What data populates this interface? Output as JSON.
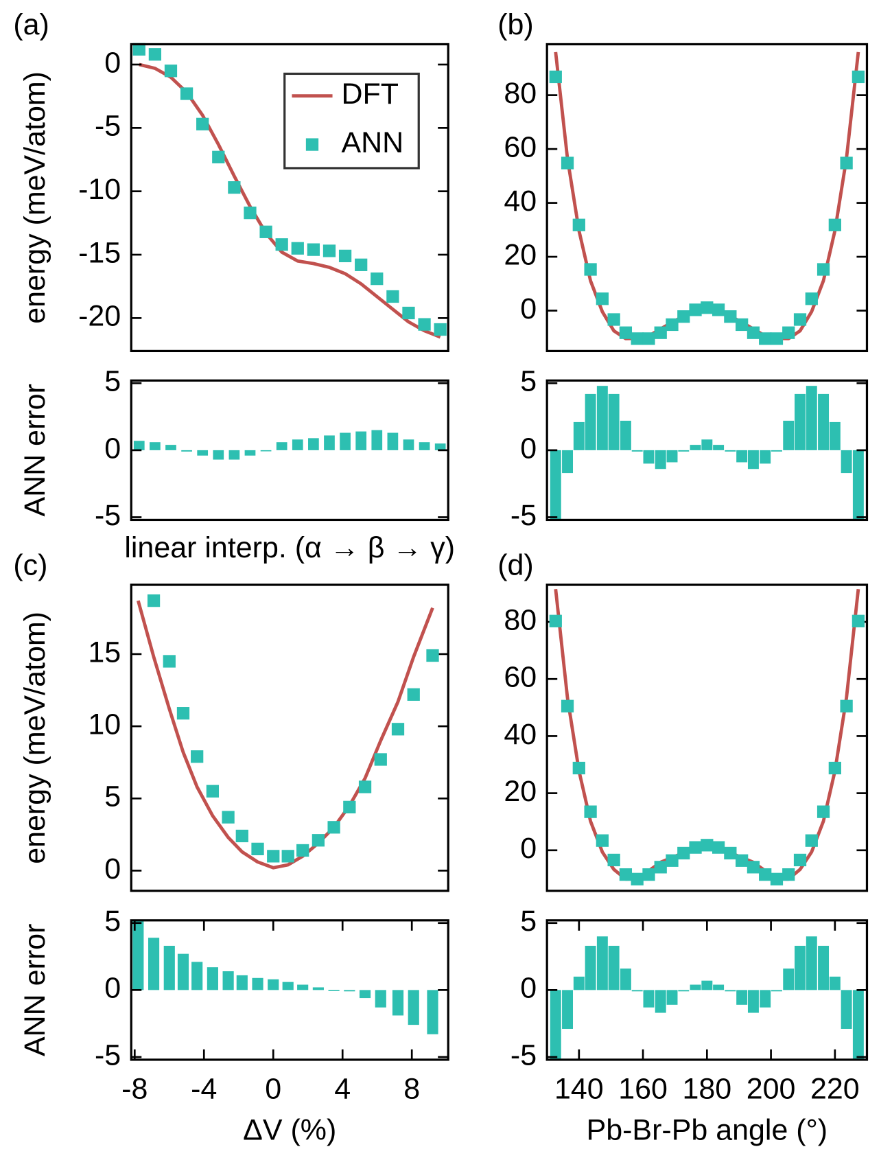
{
  "chart_data": [
    {
      "type": "line",
      "panel": "(a)",
      "ylabel": "energy (meV/atom)",
      "legend": "upper right",
      "categories": [
        null,
        null,
        null,
        null,
        null,
        null,
        null,
        null,
        null,
        null,
        null,
        null,
        null,
        null,
        null,
        null,
        null,
        null,
        null,
        null
      ],
      "ylim": [
        -22.6,
        1.6
      ],
      "yticks": [
        0,
        -5,
        -10,
        -15,
        -20
      ],
      "series": [
        {
          "name": "DFT",
          "type": "line",
          "color": "#c1514e",
          "values": [
            0,
            -0.3,
            -1.0,
            -2.2,
            -4.0,
            -6.3,
            -8.8,
            -11.2,
            -13.3,
            -14.8,
            -15.5,
            -15.7,
            -16.0,
            -16.5,
            -17.3,
            -18.3,
            -19.3,
            -20.3,
            -21.0,
            -21.5
          ]
        },
        {
          "name": "ANN",
          "type": "scatter",
          "color": "#2dbfb1",
          "values": [
            1.2,
            0.8,
            -0.5,
            -2.3,
            -4.7,
            -7.3,
            -9.7,
            -11.7,
            -13.2,
            -14.2,
            -14.5,
            -14.6,
            -14.7,
            -15.1,
            -15.8,
            -16.9,
            -18.3,
            -19.6,
            -20.5,
            -20.9
          ]
        }
      ]
    },
    {
      "type": "bar",
      "ylabel": "ANN error",
      "xlabel": "linear interp. (α → β → γ)",
      "color": "#2dbfb1",
      "categories": [
        null,
        null,
        null,
        null,
        null,
        null,
        null,
        null,
        null,
        null,
        null,
        null,
        null,
        null,
        null,
        null,
        null,
        null,
        null,
        null
      ],
      "values": [
        0.7,
        0.6,
        0.4,
        -0.1,
        -0.4,
        -0.7,
        -0.7,
        -0.4,
        0,
        0.6,
        0.8,
        0.9,
        1.1,
        1.3,
        1.4,
        1.5,
        1.3,
        0.8,
        0.6,
        0.5
      ],
      "ylim": [
        -5.2,
        5.2
      ],
      "yticks": [
        5,
        0,
        -5
      ]
    },
    {
      "type": "line",
      "panel": "(b)",
      "x": [
        132.7,
        136.4,
        140,
        143.6,
        147.3,
        150.9,
        154.6,
        158.2,
        161.8,
        165.5,
        169.1,
        172.7,
        176.4,
        180,
        183.6,
        187.3,
        190.9,
        194.5,
        198.2,
        201.8,
        205.5,
        209.1,
        212.7,
        216.4,
        220,
        223.6,
        227.3
      ],
      "xlim": [
        130,
        230
      ],
      "ylim": [
        -15,
        98.9
      ],
      "yticks": [
        0,
        20,
        40,
        60,
        80
      ],
      "series": [
        {
          "name": "DFT",
          "type": "line",
          "color": "#c1514e",
          "values": [
            96,
            56.5,
            29.7,
            11.1,
            -0.4,
            -7.5,
            -10.4,
            -10.3,
            -9.4,
            -6.8,
            -4.3,
            -2.1,
            -0.1,
            0.3,
            -0.1,
            -2.1,
            -4.3,
            -6.8,
            -9.4,
            -10.3,
            -10.4,
            -7.5,
            -0.4,
            11.1,
            29.7,
            56.5,
            96
          ]
        },
        {
          "name": "ANN",
          "type": "scatter",
          "color": "#2dbfb1",
          "values": [
            86.8,
            54.8,
            31.8,
            15.3,
            4.4,
            -3.3,
            -8.2,
            -10.4,
            -10.4,
            -8.2,
            -5.2,
            -2.2,
            0.3,
            1.1,
            0.3,
            -2.2,
            -5.2,
            -8.2,
            -10.4,
            -10.4,
            -8.2,
            -3.3,
            4.4,
            15.3,
            31.8,
            54.8,
            86.8
          ]
        }
      ]
    },
    {
      "type": "bar",
      "color": "#2dbfb1",
      "x": [
        132.7,
        136.4,
        140,
        143.6,
        147.3,
        150.9,
        154.6,
        158.2,
        161.8,
        165.5,
        169.1,
        172.7,
        176.4,
        180,
        183.6,
        187.3,
        190.9,
        194.5,
        198.2,
        201.8,
        205.5,
        209.1,
        212.7,
        216.4,
        220,
        223.6,
        227.3
      ],
      "values": [
        -5.5,
        -1.7,
        2.1,
        4.2,
        4.8,
        4.2,
        2.2,
        -0.1,
        -1.0,
        -1.4,
        -0.9,
        -0.1,
        0.4,
        0.8,
        0.4,
        -0.1,
        -0.9,
        -1.4,
        -1.0,
        -0.1,
        2.2,
        4.2,
        4.8,
        4.2,
        2.1,
        -1.7,
        -5.5
      ],
      "xlim": [
        130,
        230
      ],
      "ylim": [
        -5.2,
        5.2
      ],
      "yticks": [
        5,
        0,
        -5
      ]
    },
    {
      "type": "line",
      "panel": "(c)",
      "ylabel": "energy (meV/atom)",
      "xlim": [
        -8.2,
        10.1
      ],
      "ylim": [
        -1.4,
        19.8
      ],
      "yticks": [
        0,
        5,
        10,
        15
      ],
      "series": [
        {
          "name": "DFT",
          "type": "line",
          "color": "#c1514e",
          "x": [
            -7.8,
            -6.9,
            -6.0,
            -5.2,
            -4.4,
            -3.5,
            -2.6,
            -1.8,
            -0.9,
            0,
            0.85,
            1.7,
            2.6,
            3.5,
            4.4,
            5.3,
            6.2,
            7.2,
            8.1,
            9.2
          ],
          "values": [
            18.7,
            14.8,
            11.2,
            8.2,
            5.8,
            3.8,
            2.3,
            1.3,
            0.6,
            0.2,
            0.4,
            1.0,
            1.9,
            3.0,
            4.5,
            6.4,
            9.0,
            11.7,
            14.8,
            18.2
          ]
        },
        {
          "name": "ANN",
          "type": "scatter",
          "color": "#2dbfb1",
          "x": [
            -6.9,
            -6.0,
            -5.2,
            -4.4,
            -3.5,
            -2.6,
            -1.8,
            -0.9,
            0,
            0.85,
            1.7,
            2.6,
            3.5,
            4.4,
            5.3,
            6.2,
            7.2,
            8.1,
            9.2
          ],
          "values": [
            18.7,
            14.5,
            10.9,
            7.9,
            5.5,
            3.7,
            2.4,
            1.5,
            1.0,
            1.0,
            1.4,
            2.1,
            3.0,
            4.4,
            5.8,
            7.7,
            9.8,
            12.2,
            14.9
          ]
        }
      ]
    },
    {
      "type": "bar",
      "ylabel": "ANN error",
      "xlabel": "ΔV (%)",
      "color": "#2dbfb1",
      "x": [
        -7.8,
        -6.9,
        -6.0,
        -5.2,
        -4.4,
        -3.5,
        -2.6,
        -1.8,
        -0.9,
        0,
        0.85,
        1.7,
        2.6,
        3.5,
        4.4,
        5.3,
        6.2,
        7.2,
        8.1,
        9.2
      ],
      "values": [
        5.5,
        3.9,
        3.3,
        2.7,
        2.1,
        1.7,
        1.4,
        1.1,
        0.9,
        0.8,
        0.6,
        0.4,
        0.2,
        0,
        -0.1,
        -0.6,
        -1.3,
        -1.9,
        -2.6,
        -3.3
      ],
      "xlim": [
        -8.2,
        10.1
      ],
      "xticks": [
        -8,
        -4,
        0,
        4,
        8
      ],
      "ylim": [
        -5.2,
        5.2
      ],
      "yticks": [
        5,
        0,
        -5
      ]
    },
    {
      "type": "line",
      "panel": "(d)",
      "x": [
        132.7,
        136.4,
        140,
        143.6,
        147.3,
        150.9,
        154.6,
        158.2,
        161.8,
        165.5,
        169.1,
        172.7,
        176.4,
        180,
        183.6,
        187.3,
        190.9,
        194.5,
        198.2,
        201.8,
        205.5,
        209.1,
        212.7,
        216.4,
        220,
        223.6,
        227.3
      ],
      "xlim": [
        130,
        230
      ],
      "ylim": [
        -14.2,
        93
      ],
      "yticks": [
        0,
        20,
        40,
        60,
        80
      ],
      "series": [
        {
          "name": "DFT",
          "type": "line",
          "color": "#c1514e",
          "values": [
            91.5,
            53.4,
            27.8,
            10.2,
            -0.6,
            -6.7,
            -10.1,
            -10.0,
            -7.2,
            -4.2,
            -2.5,
            -0.9,
            0.6,
            1.1,
            0.6,
            -0.9,
            -2.5,
            -4.2,
            -7.2,
            -10.0,
            -10.1,
            -6.7,
            -0.6,
            10.2,
            27.8,
            53.4,
            91.5
          ]
        },
        {
          "name": "ANN",
          "type": "scatter",
          "color": "#2dbfb1",
          "values": [
            80.3,
            50.5,
            28.8,
            13.5,
            3.4,
            -3.4,
            -8.5,
            -10.1,
            -8.5,
            -5.9,
            -3.6,
            -1.0,
            1.0,
            1.8,
            1.0,
            -1.0,
            -3.6,
            -5.9,
            -8.5,
            -10.1,
            -8.5,
            -3.4,
            3.4,
            13.5,
            28.8,
            50.5,
            80.3
          ]
        }
      ]
    },
    {
      "type": "bar",
      "xlabel": "Pb-Br-Pb angle (°)",
      "color": "#2dbfb1",
      "x": [
        132.7,
        136.4,
        140,
        143.6,
        147.3,
        150.9,
        154.6,
        158.2,
        161.8,
        165.5,
        169.1,
        172.7,
        176.4,
        180,
        183.6,
        187.3,
        190.9,
        194.5,
        198.2,
        201.8,
        205.5,
        209.1,
        212.7,
        216.4,
        220,
        223.6,
        227.3
      ],
      "values": [
        -5.5,
        -2.9,
        1.0,
        3.3,
        4.0,
        3.3,
        1.6,
        -0.1,
        -1.3,
        -1.7,
        -1.1,
        -0.1,
        0.4,
        0.7,
        0.4,
        -0.1,
        -1.1,
        -1.7,
        -1.3,
        -0.1,
        1.6,
        3.3,
        4.0,
        3.3,
        1.0,
        -2.9,
        -5.5
      ],
      "xlim": [
        130,
        230
      ],
      "xticks": [
        140,
        160,
        180,
        200,
        220
      ],
      "ylim": [
        -5.2,
        5.2
      ],
      "yticks": [
        5,
        0,
        -5
      ]
    }
  ]
}
